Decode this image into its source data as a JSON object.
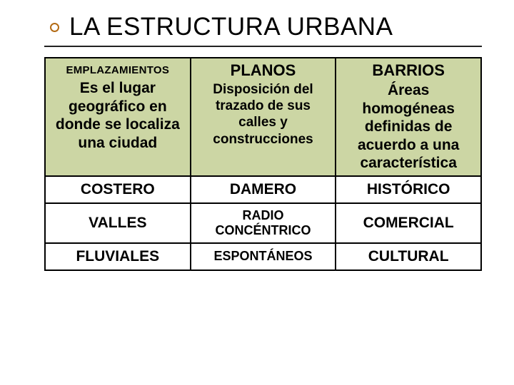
{
  "title": "LA ESTRUCTURA URBANA",
  "colors": {
    "accent": "#b36b15",
    "header_bg": "#ccd6a4",
    "border": "#000000",
    "text": "#000000",
    "background": "#ffffff"
  },
  "table": {
    "header": {
      "col1": {
        "title": "EMPLAZAMIENTOS",
        "desc": "Es el lugar geográfico en donde se localiza una ciudad"
      },
      "col2": {
        "title": "PLANOS",
        "desc": "Disposición del trazado de sus calles y construcciones"
      },
      "col3": {
        "title": "BARRIOS",
        "desc": "Áreas homogéneas definidas de acuerdo a una característica"
      }
    },
    "rows": [
      {
        "c1": "COSTERO",
        "c2": "DAMERO",
        "c3": "HISTÓRICO"
      },
      {
        "c1": "VALLES",
        "c2": "RADIO CONCÉNTRICO",
        "c3": "COMERCIAL"
      },
      {
        "c1": "FLUVIALES",
        "c2": "ESPONTÁNEOS",
        "c3": "CULTURAL"
      }
    ]
  }
}
